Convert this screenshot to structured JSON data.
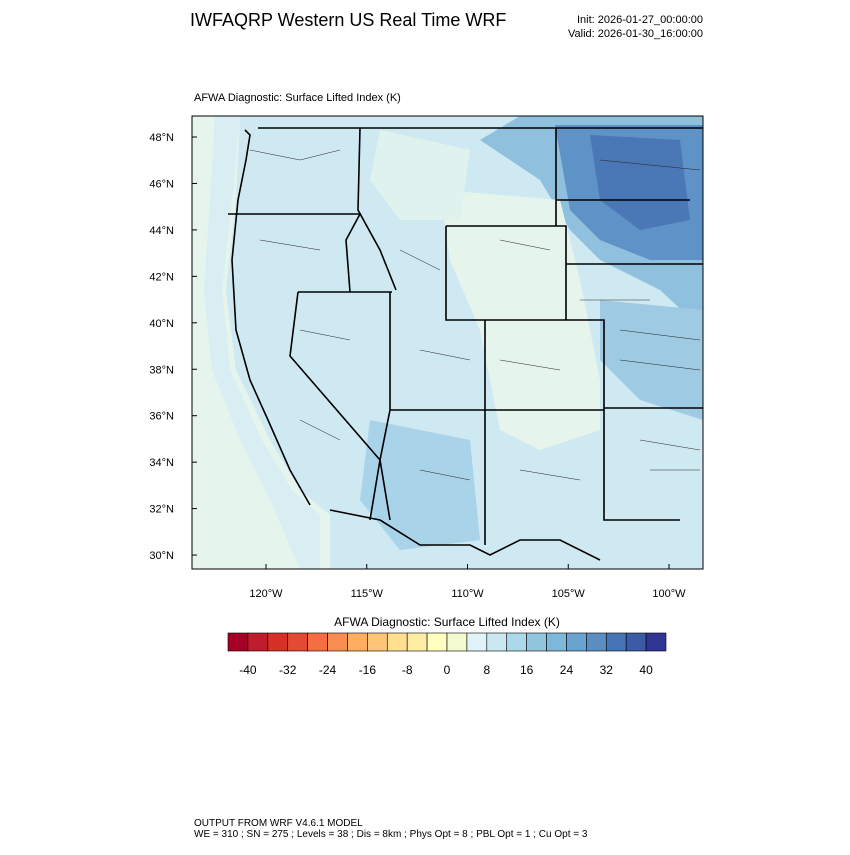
{
  "header": {
    "title": "IWFAQRP Western US Real Time WRF",
    "init": "Init: 2026-01-27_00:00:00",
    "valid": "Valid: 2026-01-30_16:00:00"
  },
  "map": {
    "title": "AFWA Diagnostic: Surface Lifted Index   (K)",
    "lat_labels": [
      "48°N",
      "46°N",
      "44°N",
      "42°N",
      "40°N",
      "38°N",
      "36°N",
      "34°N",
      "32°N",
      "30°N"
    ],
    "lon_labels": [
      "120°W",
      "115°W",
      "110°W",
      "105°W",
      "100°W"
    ]
  },
  "colorbar": {
    "title": "AFWA Diagnostic: Surface Lifted Index  (K)",
    "lim": [
      -44,
      44
    ],
    "ticks": [
      -40,
      -32,
      -24,
      -16,
      -8,
      0,
      8,
      16,
      24,
      32,
      40
    ],
    "colors": [
      "#a50026",
      "#bf1d2d",
      "#d73027",
      "#e34a33",
      "#f46d43",
      "#f88d52",
      "#fdae61",
      "#fdc577",
      "#fee090",
      "#fdeea3",
      "#ffffbf",
      "#f3fad0",
      "#e0f3f8",
      "#cbe8f1",
      "#abd9e9",
      "#92c5de",
      "#7db8da",
      "#6aa3cf",
      "#5a8ec1",
      "#4575b4",
      "#3b5ba6",
      "#313695"
    ]
  },
  "footer": {
    "line1": "OUTPUT FROM WRF V4.6.1 MODEL",
    "line2": "WE = 310 ; SN = 275 ; Levels = 38 ; Dis = 8km ; Phys Opt = 8 ; PBL Opt = 1 ; Cu Opt = 3"
  }
}
